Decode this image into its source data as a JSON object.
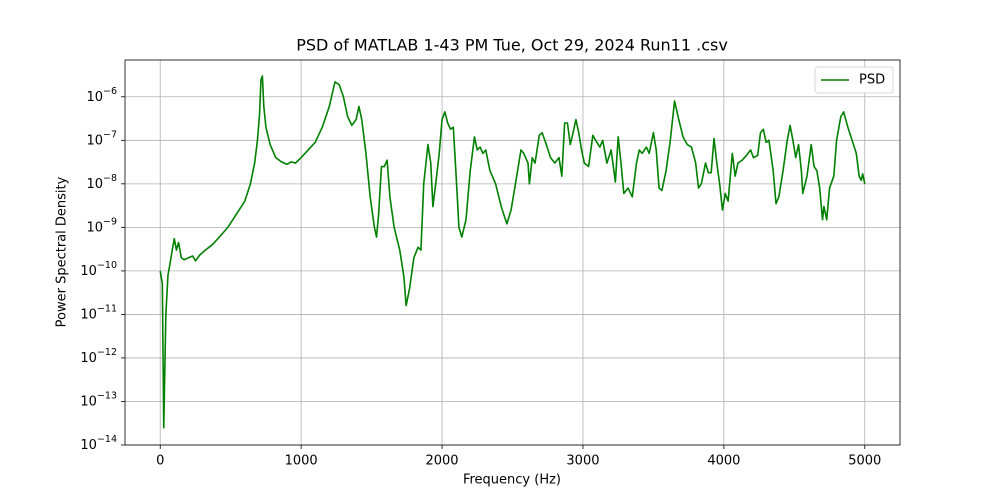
{
  "chart_data": {
    "type": "line",
    "title": "PSD of MATLAB 1-43 PM Tue, Oct 29, 2024 Run11 .csv",
    "x_label": "Frequency (Hz)",
    "y_label": "Power Spectral Density",
    "yscale": "log",
    "grid": true,
    "legend": "upper right",
    "xlim": [
      -250,
      5250
    ],
    "xticks": [
      0,
      1000,
      2000,
      3000,
      4000,
      5000
    ],
    "ylim": [
      1e-14,
      7e-06
    ],
    "yticks": [
      {
        "value": 1e-14,
        "label": "10−14"
      },
      {
        "value": 1e-13,
        "label": "10−13"
      },
      {
        "value": 1e-12,
        "label": "10−12"
      },
      {
        "value": 1e-11,
        "label": "10−11"
      },
      {
        "value": 1e-10,
        "label": "10−10"
      },
      {
        "value": 1e-09,
        "label": "10−9"
      },
      {
        "value": 1e-08,
        "label": "10−8"
      },
      {
        "value": 1e-07,
        "label": "10−7"
      },
      {
        "value": 1e-06,
        "label": "10−6"
      }
    ],
    "series": [
      {
        "name": "PSD",
        "color": "#008000",
        "x": [
          0,
          15,
          25,
          40,
          55,
          70,
          85,
          100,
          115,
          130,
          150,
          170,
          200,
          230,
          250,
          280,
          320,
          370,
          420,
          480,
          540,
          600,
          640,
          670,
          690,
          705,
          715,
          725,
          735,
          750,
          780,
          820,
          860,
          900,
          930,
          960,
          1000,
          1050,
          1100,
          1150,
          1200,
          1240,
          1270,
          1300,
          1330,
          1360,
          1390,
          1410,
          1430,
          1460,
          1490,
          1520,
          1535,
          1550,
          1570,
          1590,
          1610,
          1630,
          1660,
          1700,
          1730,
          1745,
          1770,
          1800,
          1830,
          1850,
          1870,
          1900,
          1920,
          1935,
          1955,
          1980,
          2000,
          2020,
          2040,
          2060,
          2080,
          2100,
          2120,
          2140,
          2170,
          2200,
          2230,
          2250,
          2270,
          2290,
          2310,
          2340,
          2380,
          2420,
          2460,
          2490,
          2530,
          2560,
          2580,
          2610,
          2620,
          2640,
          2660,
          2690,
          2710,
          2740,
          2770,
          2800,
          2830,
          2850,
          2870,
          2890,
          2910,
          2930,
          2950,
          2970,
          2990,
          3010,
          3040,
          3070,
          3090,
          3120,
          3140,
          3170,
          3200,
          3230,
          3250,
          3270,
          3290,
          3320,
          3350,
          3380,
          3400,
          3420,
          3450,
          3470,
          3500,
          3520,
          3540,
          3560,
          3590,
          3620,
          3650,
          3680,
          3710,
          3740,
          3770,
          3800,
          3820,
          3840,
          3870,
          3890,
          3910,
          3930,
          3950,
          3970,
          3990,
          4010,
          4030,
          4060,
          4080,
          4100,
          4130,
          4160,
          4190,
          4210,
          4240,
          4260,
          4280,
          4300,
          4320,
          4350,
          4370,
          4390,
          4420,
          4450,
          4470,
          4490,
          4510,
          4530,
          4550,
          4560,
          4590,
          4620,
          4640,
          4660,
          4680,
          4700,
          4710,
          4730,
          4750,
          4780,
          4800,
          4830,
          4850,
          4880,
          4910,
          4940,
          4960,
          4975,
          4985,
          5000
        ],
        "values": [
          1e-10,
          5e-11,
          2.5e-14,
          1e-11,
          8e-11,
          1.5e-10,
          3e-10,
          5.5e-10,
          3e-10,
          4.5e-10,
          2e-10,
          1.8e-10,
          2e-10,
          2.2e-10,
          1.7e-10,
          2.3e-10,
          3e-10,
          4e-10,
          6e-10,
          1e-09,
          2e-09,
          4e-09,
          1e-08,
          3e-08,
          1e-07,
          4e-07,
          2.5e-06,
          3e-06,
          6e-07,
          2e-07,
          8e-08,
          4e-08,
          3.2e-08,
          2.8e-08,
          3.2e-08,
          3e-08,
          4e-08,
          6e-08,
          9e-08,
          2e-07,
          6e-07,
          2.2e-06,
          1.9e-06,
          1e-06,
          3.5e-07,
          2.2e-07,
          3e-07,
          6e-07,
          3e-07,
          5e-08,
          5e-09,
          1e-09,
          6e-10,
          2e-09,
          2.5e-08,
          2.5e-08,
          3.5e-08,
          5e-09,
          1e-09,
          3e-10,
          7e-11,
          1.6e-11,
          4e-11,
          2e-10,
          3.5e-10,
          3e-10,
          1e-08,
          8e-08,
          3e-08,
          3e-09,
          1e-08,
          5e-08,
          3e-07,
          4.5e-07,
          2.5e-07,
          1.8e-07,
          2e-07,
          1.5e-08,
          1e-09,
          6e-10,
          1.5e-09,
          2e-08,
          1.2e-07,
          6e-08,
          7e-08,
          5e-08,
          6e-08,
          2e-08,
          1e-08,
          3e-09,
          1.2e-09,
          2.5e-09,
          1.5e-08,
          6e-08,
          5e-08,
          3e-08,
          1e-08,
          4e-08,
          3e-08,
          1.3e-07,
          1.5e-07,
          8e-08,
          4e-08,
          3e-08,
          4e-08,
          1.5e-08,
          2.5e-07,
          2.5e-07,
          8e-08,
          1.5e-07,
          3e-07,
          1.5e-07,
          6e-08,
          3e-08,
          2.5e-08,
          1.3e-07,
          1e-07,
          7e-08,
          1e-07,
          3e-08,
          6e-08,
          1.1e-08,
          1.2e-07,
          3e-08,
          6e-09,
          8e-09,
          5e-09,
          3e-08,
          6e-08,
          5e-08,
          7e-08,
          5e-08,
          1.5e-07,
          6e-08,
          8e-09,
          7e-09,
          2e-08,
          1e-07,
          8e-07,
          3e-07,
          1.2e-07,
          8e-08,
          7e-08,
          3e-08,
          8e-09,
          1e-08,
          3e-08,
          1.8e-08,
          1.8e-08,
          1.1e-07,
          3e-08,
          1e-08,
          2.5e-09,
          6e-09,
          4e-09,
          5e-08,
          1.5e-08,
          3e-08,
          3.5e-08,
          4.5e-08,
          6e-08,
          4e-08,
          4.5e-08,
          1.5e-07,
          1.8e-07,
          9e-08,
          1e-07,
          2e-08,
          3.5e-09,
          5e-09,
          2e-08,
          1e-07,
          2.2e-07,
          1e-07,
          4e-08,
          8e-08,
          2e-08,
          6e-09,
          1.5e-08,
          8e-08,
          2.5e-08,
          2e-08,
          8e-09,
          1.5e-09,
          3e-09,
          1.5e-09,
          8e-09,
          1.5e-08,
          1e-07,
          3.5e-07,
          4.5e-07,
          2e-07,
          1e-07,
          5e-08,
          1.5e-08,
          1.2e-08,
          1.7e-08,
          1e-08
        ]
      }
    ]
  }
}
